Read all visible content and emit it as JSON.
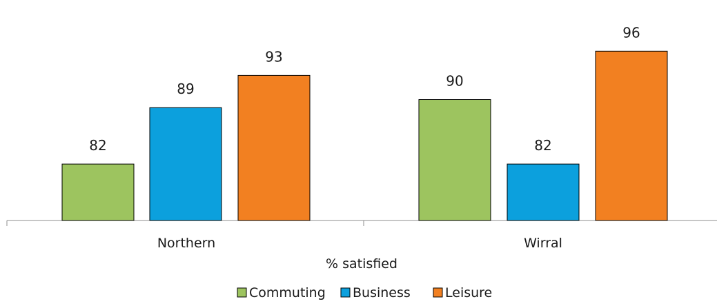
{
  "chart_data": {
    "type": "bar",
    "categories": [
      "Northern",
      "Wirral"
    ],
    "series": [
      {
        "name": "Commuting",
        "values": [
          82,
          90
        ],
        "color": "#9dc45f"
      },
      {
        "name": "Business",
        "values": [
          89,
          82
        ],
        "color": "#0ca0dd"
      },
      {
        "name": "Leisure",
        "values": [
          93,
          96
        ],
        "color": "#f28021"
      }
    ],
    "title": "",
    "xlabel": "% satisfied",
    "ylabel": "",
    "ylim": [
      75,
      99
    ],
    "grid": false,
    "legend": "bottom",
    "data_labels": true,
    "colors": {
      "axis": "#8c8c8c",
      "bar_outline": "#000000"
    }
  }
}
